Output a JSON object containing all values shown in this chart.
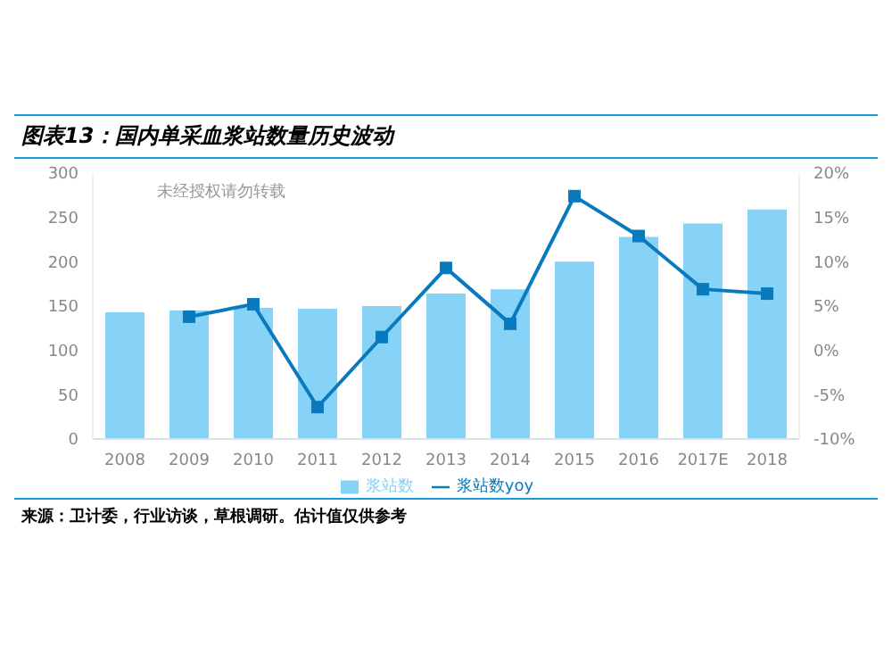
{
  "chart_data": {
    "type": "bar",
    "title": "图表13：国内单采血浆站数量历史波动",
    "categories": [
      "2008",
      "2009",
      "2010",
      "2011",
      "2012",
      "2013",
      "2014",
      "2015",
      "2016",
      "2017E",
      "2018"
    ],
    "series": [
      {
        "name": "浆站数",
        "type": "bar",
        "color": "#87d3f8",
        "values": [
          143,
          145,
          148,
          147,
          150,
          164,
          169,
          200,
          228,
          243,
          259
        ]
      },
      {
        "name": "浆站数yoy",
        "type": "line",
        "axis": "y2",
        "color": "#0a7abf",
        "values": [
          null,
          3.8,
          5.2,
          -6.4,
          1.5,
          9.3,
          3.0,
          17.4,
          12.9,
          6.9,
          6.4
        ]
      }
    ],
    "ylim": [
      0,
      300
    ],
    "yticks": [
      0,
      50,
      100,
      150,
      200,
      250,
      300
    ],
    "y2lim": [
      -10,
      20
    ],
    "y2ticks": [
      {
        "value": -10,
        "label": "-10%"
      },
      {
        "value": -5,
        "label": "-5%"
      },
      {
        "value": 0,
        "label": "0%"
      },
      {
        "value": 5,
        "label": "5%"
      },
      {
        "value": 10,
        "label": "10%"
      },
      {
        "value": 15,
        "label": "15%"
      },
      {
        "value": 20,
        "label": "20%"
      }
    ],
    "marker": "square",
    "grid": false,
    "legend": "bottom",
    "annotations": [
      "未经授权请勿转载",
      "来源：卫计委，行业访谈，草根调研。估计值仅供参考"
    ]
  }
}
